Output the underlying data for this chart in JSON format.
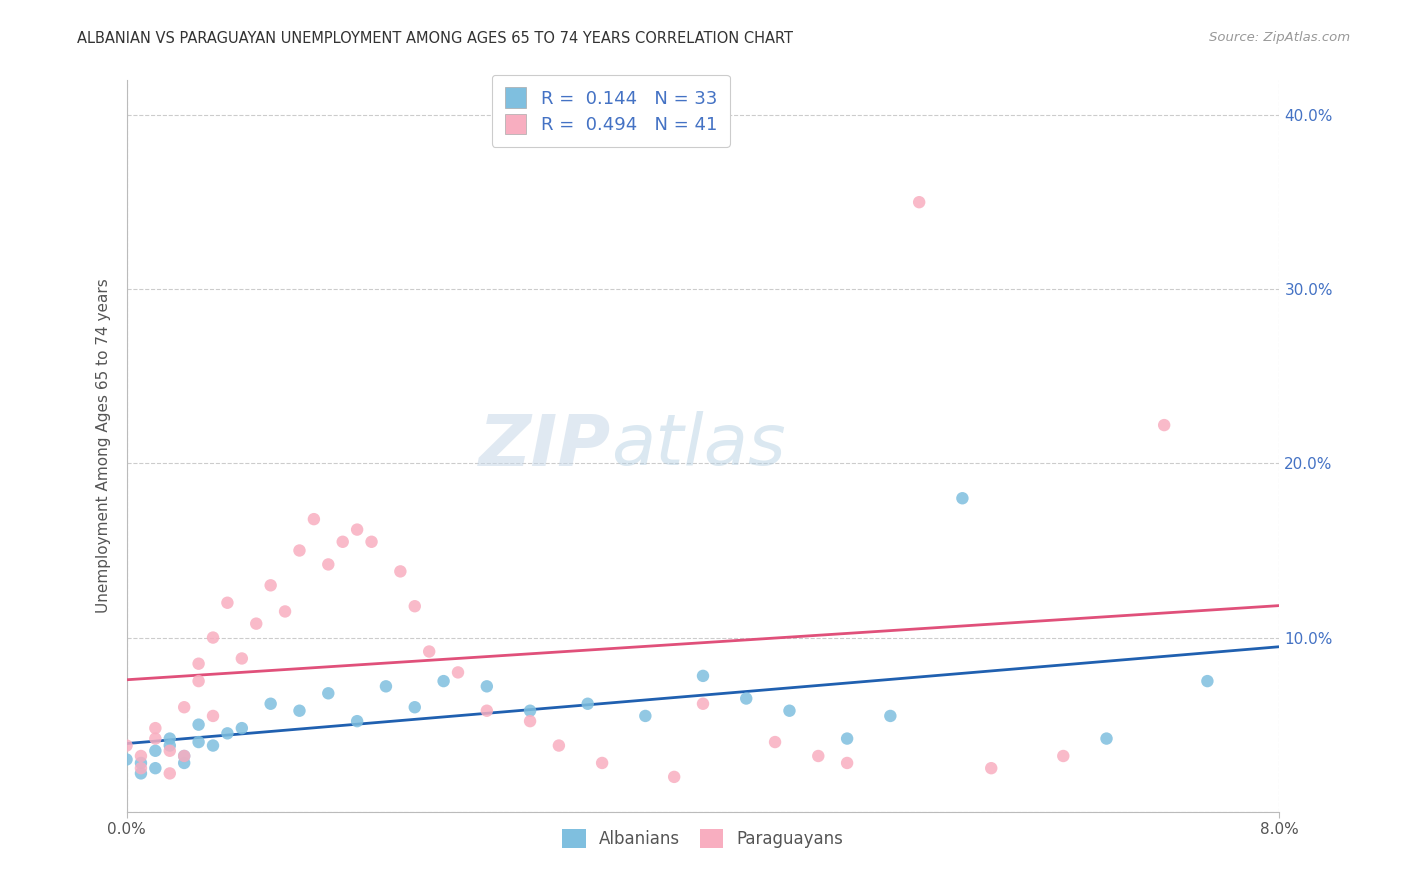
{
  "title": "ALBANIAN VS PARAGUAYAN UNEMPLOYMENT AMONG AGES 65 TO 74 YEARS CORRELATION CHART",
  "source": "Source: ZipAtlas.com",
  "ylabel": "Unemployment Among Ages 65 to 74 years",
  "xlim": [
    0.0,
    0.08
  ],
  "ylim": [
    0.0,
    0.42
  ],
  "albanian_color": "#7fbfdf",
  "paraguayan_color": "#f8aec0",
  "albanian_line_color": "#2060b0",
  "paraguayan_line_color": "#e0507a",
  "albanian_R": 0.144,
  "albanian_N": 33,
  "paraguayan_R": 0.494,
  "paraguayan_N": 41,
  "background_color": "#ffffff",
  "grid_color": "#cccccc",
  "albanian_x": [
    0.0,
    0.001,
    0.001,
    0.002,
    0.002,
    0.003,
    0.003,
    0.004,
    0.004,
    0.005,
    0.005,
    0.006,
    0.007,
    0.008,
    0.01,
    0.012,
    0.014,
    0.016,
    0.018,
    0.02,
    0.022,
    0.025,
    0.028,
    0.032,
    0.036,
    0.04,
    0.043,
    0.046,
    0.05,
    0.053,
    0.058,
    0.068,
    0.075
  ],
  "albanian_y": [
    0.03,
    0.028,
    0.022,
    0.035,
    0.025,
    0.038,
    0.042,
    0.032,
    0.028,
    0.05,
    0.04,
    0.038,
    0.045,
    0.048,
    0.062,
    0.058,
    0.068,
    0.052,
    0.072,
    0.06,
    0.075,
    0.072,
    0.058,
    0.062,
    0.055,
    0.078,
    0.065,
    0.058,
    0.042,
    0.055,
    0.18,
    0.042,
    0.075
  ],
  "paraguayan_x": [
    0.0,
    0.001,
    0.001,
    0.002,
    0.002,
    0.003,
    0.003,
    0.004,
    0.004,
    0.005,
    0.005,
    0.006,
    0.006,
    0.007,
    0.008,
    0.009,
    0.01,
    0.011,
    0.012,
    0.013,
    0.014,
    0.015,
    0.016,
    0.017,
    0.019,
    0.02,
    0.021,
    0.023,
    0.025,
    0.028,
    0.03,
    0.033,
    0.038,
    0.04,
    0.045,
    0.048,
    0.05,
    0.055,
    0.06,
    0.065,
    0.072
  ],
  "paraguayan_y": [
    0.038,
    0.032,
    0.025,
    0.048,
    0.042,
    0.035,
    0.022,
    0.06,
    0.032,
    0.085,
    0.075,
    0.1,
    0.055,
    0.12,
    0.088,
    0.108,
    0.13,
    0.115,
    0.15,
    0.168,
    0.142,
    0.155,
    0.162,
    0.155,
    0.138,
    0.118,
    0.092,
    0.08,
    0.058,
    0.052,
    0.038,
    0.028,
    0.02,
    0.062,
    0.04,
    0.032,
    0.028,
    0.35,
    0.025,
    0.032,
    0.222
  ],
  "watermark_text": "ZIPatlas",
  "watermark_color": "#d0e8f5",
  "watermark_zip_color": "#c8d8e8",
  "legend_text_color": "#4472c4",
  "ytick_color": "#4472c4",
  "xtick_color": "#555555"
}
